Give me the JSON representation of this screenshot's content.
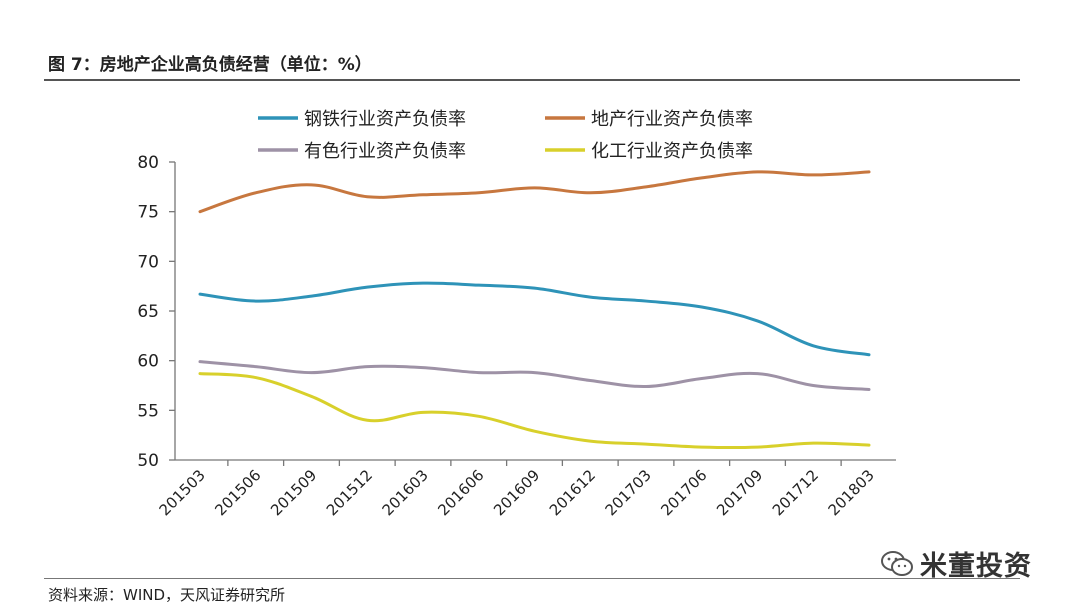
{
  "header": {
    "title": "图 7：房地产企业高负债经营（单位：%）"
  },
  "footer": {
    "source": "资料来源：WIND，天风证券研究所"
  },
  "watermark": {
    "text": "米董投资"
  },
  "chart_data": {
    "type": "line",
    "title": "图 7：房地产企业高负债经营（单位：%）",
    "xlabel": "",
    "ylabel": "",
    "ylim": [
      50,
      80
    ],
    "yticks": [
      50,
      55,
      60,
      65,
      70,
      75,
      80
    ],
    "categories": [
      "201503",
      "201506",
      "201509",
      "201512",
      "201603",
      "201606",
      "201609",
      "201612",
      "201703",
      "201706",
      "201709",
      "201712",
      "201803"
    ],
    "legend_position": "top",
    "series": [
      {
        "name": "钢铁行业资产负债率",
        "color": "#2e93b8",
        "values": [
          66.7,
          66.0,
          66.5,
          67.4,
          67.8,
          67.6,
          67.3,
          66.4,
          66.0,
          65.4,
          64.0,
          61.5,
          60.6
        ]
      },
      {
        "name": "地产行业资产负债率",
        "color": "#c7773f",
        "values": [
          75.0,
          76.9,
          77.7,
          76.5,
          76.7,
          76.9,
          77.4,
          76.9,
          77.5,
          78.4,
          79.0,
          78.7,
          79.0
        ]
      },
      {
        "name": "有色行业资产负债率",
        "color": "#9e92a6",
        "values": [
          59.9,
          59.4,
          58.8,
          59.4,
          59.3,
          58.8,
          58.8,
          58.0,
          57.4,
          58.2,
          58.7,
          57.5,
          57.1
        ]
      },
      {
        "name": "化工行业资产负债率",
        "color": "#d8d02b",
        "values": [
          58.7,
          58.3,
          56.4,
          54.0,
          54.8,
          54.4,
          52.9,
          51.9,
          51.6,
          51.3,
          51.3,
          51.7,
          51.5
        ]
      }
    ]
  }
}
